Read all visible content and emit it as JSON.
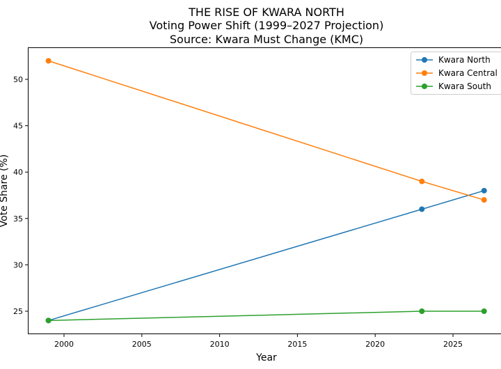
{
  "chart_data": {
    "type": "line",
    "title_lines": [
      "THE RISE OF KWARA NORTH",
      "Voting Power Shift (1999–2027 Projection)",
      "Source: Kwara Must Change (KMC)"
    ],
    "xlabel": "Year",
    "ylabel": "Vote Share (%)",
    "x": [
      1999,
      2023,
      2027
    ],
    "xlim": [
      1997.7,
      2030
    ],
    "ylim": [
      22.9,
      53.6
    ],
    "xticks": [
      2000,
      2005,
      2010,
      2015,
      2020,
      2025
    ],
    "yticks": [
      25,
      30,
      35,
      40,
      45,
      50
    ],
    "legend_position": "top-right",
    "grid": false,
    "series": [
      {
        "name": "Kwara North",
        "color": "#1f77b4",
        "values": [
          24,
          36,
          38
        ]
      },
      {
        "name": "Kwara Central",
        "color": "#ff7f0e",
        "values": [
          52,
          39,
          37
        ]
      },
      {
        "name": "Kwara South",
        "color": "#2ca02c",
        "values": [
          24,
          25,
          25
        ]
      }
    ]
  }
}
